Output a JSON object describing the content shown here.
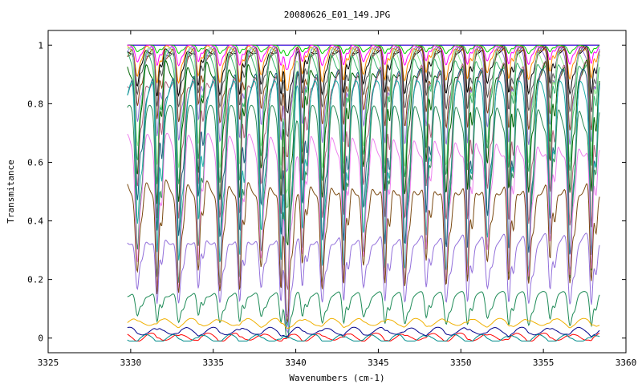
{
  "chart_data": {
    "type": "line",
    "title": "20080626_E01_149.JPG",
    "xlabel": "Wavenumbers (cm-1)",
    "ylabel": "Transmitance",
    "xlim": [
      3325,
      3360
    ],
    "ylim": [
      -0.05,
      1.05
    ],
    "x_range_of_data": [
      3329.8,
      3358.4
    ],
    "xticks": [
      3325,
      3330,
      3335,
      3340,
      3345,
      3350,
      3355,
      3360
    ],
    "yticks": [
      0,
      0.2,
      0.4,
      0.6,
      0.8,
      1
    ],
    "ytick_labels": [
      "0",
      "0.2",
      "0.4",
      "0.6",
      "0.8",
      "1"
    ],
    "grid": false,
    "legend": "none",
    "absorption_lines": [
      3330.4,
      3331.6,
      3332.9,
      3334.1,
      3335.4,
      3336.6,
      3337.9,
      3339.1,
      3339.5,
      3340.4,
      3341.6,
      3342.9,
      3344.1,
      3345.4,
      3346.6,
      3347.9,
      3349.1,
      3350.4,
      3351.6,
      3352.9,
      3354.1,
      3355.4,
      3356.6,
      3357.9
    ],
    "series": [
      {
        "baseline": 1.0,
        "color": "#ff0000"
      },
      {
        "baseline": 1.0,
        "color": "#0000ff"
      },
      {
        "baseline": 0.998,
        "color": "#00cc00"
      },
      {
        "baseline": 0.995,
        "color": "#ff00ff"
      },
      {
        "baseline": 0.99,
        "color": "#ff8c00"
      },
      {
        "baseline": 0.985,
        "color": "#000000"
      },
      {
        "baseline": 0.98,
        "color": "#555555"
      },
      {
        "baseline": 0.975,
        "color": "#8b4513"
      },
      {
        "baseline": 0.97,
        "color": "#9370db"
      },
      {
        "baseline": 0.96,
        "color": "#90ee90"
      },
      {
        "baseline": 0.95,
        "color": "#3cb371"
      },
      {
        "baseline": 0.93,
        "color": "#006400"
      },
      {
        "baseline": 0.9,
        "color": "#b0607a"
      },
      {
        "baseline": 0.87,
        "color": "#1f5f7f"
      },
      {
        "baseline": 0.83,
        "color": "#20b2aa"
      },
      {
        "baseline": 0.75,
        "color": "#2e8b57"
      },
      {
        "baseline": 0.66,
        "color": "#ee82ee"
      },
      {
        "baseline": 0.52,
        "color": "#7b4a12"
      },
      {
        "baseline": 0.34,
        "color": "#9370db"
      },
      {
        "baseline": 0.15,
        "color": "#1e8b57"
      },
      {
        "baseline": 0.055,
        "color": "#f0b000"
      },
      {
        "baseline": 0.025,
        "color": "#00008b"
      },
      {
        "baseline": 0.005,
        "color": "#ff0000"
      },
      {
        "baseline": 0.0,
        "color": "#008b8b"
      }
    ]
  }
}
